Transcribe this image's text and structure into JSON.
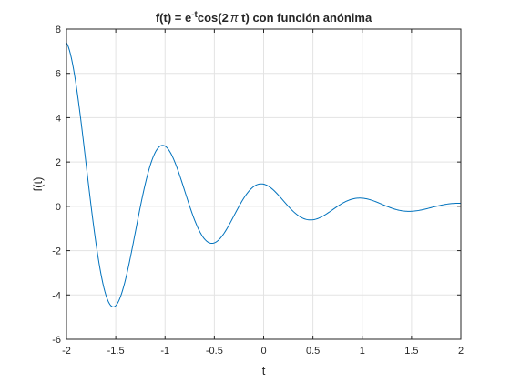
{
  "chart_data": {
    "type": "line",
    "title": {
      "prefix": "f(t) = e",
      "superscript": "-t",
      "middle": "cos(2",
      "symbol": "π",
      "suffix": " t) con función anónima"
    },
    "xlabel": "t",
    "ylabel": "f(t)",
    "xlim": [
      -2,
      2
    ],
    "ylim": [
      -6,
      8
    ],
    "x_ticks": [
      -2,
      -1.5,
      -1,
      -0.5,
      0,
      0.5,
      1,
      1.5,
      2
    ],
    "x_tick_labels": [
      "-2",
      "-1.5",
      "-1",
      "-0.5",
      "0",
      "0.5",
      "1",
      "1.5",
      "2"
    ],
    "y_ticks": [
      -6,
      -4,
      -2,
      0,
      2,
      4,
      6,
      8
    ],
    "y_tick_labels": [
      "-6",
      "-4",
      "-2",
      "0",
      "2",
      "4",
      "6",
      "8"
    ],
    "grid": true,
    "series": [
      {
        "color": "#0072bd",
        "function": "exp(-t)*cos(2*pi*t)",
        "x_start": -2,
        "x_end": 2,
        "x_step": 0.01
      }
    ]
  }
}
